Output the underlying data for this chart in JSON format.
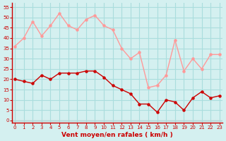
{
  "hours": [
    0,
    1,
    2,
    3,
    4,
    5,
    6,
    7,
    8,
    9,
    10,
    11,
    12,
    13,
    14,
    15,
    16,
    17,
    18,
    19,
    20,
    21,
    22,
    23
  ],
  "wind_avg": [
    20,
    19,
    18,
    22,
    20,
    23,
    23,
    23,
    24,
    24,
    21,
    17,
    15,
    13,
    8,
    8,
    4,
    10,
    9,
    5,
    11,
    14,
    11,
    12
  ],
  "wind_gust": [
    36,
    40,
    48,
    41,
    46,
    52,
    46,
    44,
    49,
    51,
    46,
    44,
    35,
    30,
    33,
    16,
    17,
    22,
    39,
    24,
    30,
    25,
    32,
    32
  ],
  "avg_color": "#cc0000",
  "gust_color": "#ff9999",
  "bg_color": "#d4f0f0",
  "grid_color": "#aadddd",
  "xlabel": "Vent moyen/en rafales ( km/h )",
  "xlabel_color": "#cc0000",
  "ylabel_ticks": [
    0,
    5,
    10,
    15,
    20,
    25,
    30,
    35,
    40,
    45,
    50,
    55
  ],
  "ylim": [
    -1,
    57
  ],
  "xlim": [
    -0.3,
    23.3
  ],
  "tick_color": "#cc0000",
  "spine_color": "#cc0000"
}
